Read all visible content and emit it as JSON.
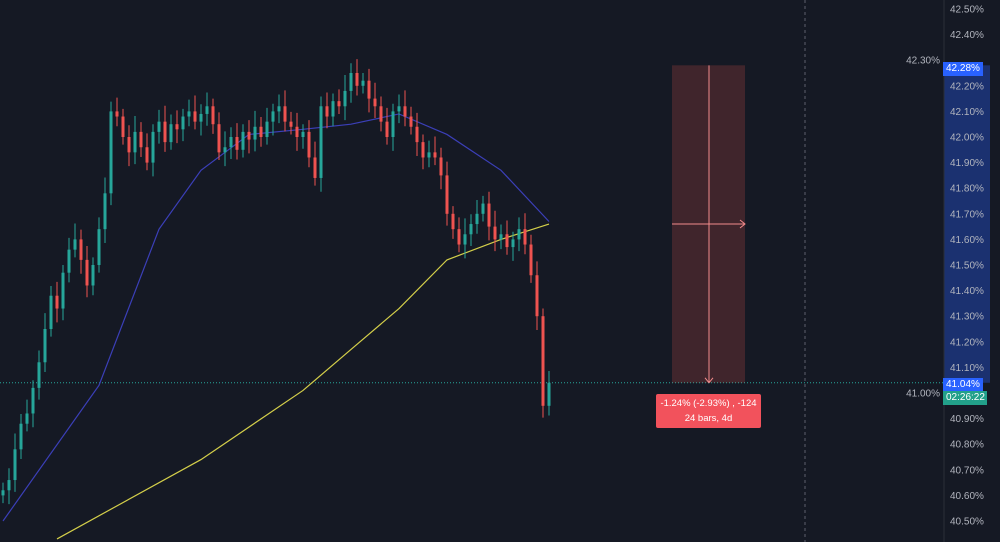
{
  "chart_data": {
    "type": "candlestick",
    "y_axis": {
      "min": 40.45,
      "max": 42.55,
      "ticks": [
        42.5,
        42.4,
        42.3,
        42.2,
        42.1,
        42.0,
        41.9,
        41.8,
        41.7,
        41.6,
        41.5,
        41.4,
        41.3,
        41.2,
        41.1,
        41.0,
        40.9,
        40.8,
        40.7,
        40.6,
        40.5
      ],
      "tick_suffix": "%",
      "position": "right"
    },
    "grid": false,
    "closes": [
      40.62,
      40.66,
      40.78,
      40.88,
      40.92,
      41.02,
      41.12,
      41.25,
      41.38,
      41.33,
      41.47,
      41.56,
      41.6,
      41.52,
      41.42,
      41.5,
      41.64,
      41.78,
      42.1,
      42.08,
      42.0,
      41.94,
      42.02,
      41.96,
      41.9,
      42.02,
      42.06,
      41.98,
      42.05,
      42.03,
      42.08,
      42.1,
      42.06,
      42.09,
      42.12,
      42.05,
      41.94,
      41.96,
      42.0,
      41.95,
      42.02,
      41.99,
      42.04,
      42.0,
      42.06,
      42.1,
      42.12,
      42.06,
      42.04,
      42.0,
      42.02,
      41.92,
      41.84,
      42.12,
      42.08,
      42.14,
      42.12,
      42.18,
      42.25,
      42.2,
      42.22,
      42.15,
      42.12,
      42.06,
      42.0,
      42.1,
      42.12,
      42.08,
      42.04,
      41.98,
      41.92,
      41.94,
      41.92,
      41.85,
      41.7,
      41.64,
      41.58,
      41.62,
      41.66,
      41.7,
      41.74,
      41.65,
      41.6,
      41.62,
      41.57,
      41.6,
      41.64,
      41.58,
      41.46,
      41.3,
      40.95,
      41.04
    ],
    "first_open": 40.6,
    "moving_averages": [
      {
        "color": "#3b3fb8",
        "points": [
          [
            0,
            40.5
          ],
          [
            16,
            41.03
          ],
          [
            26,
            41.64
          ],
          [
            33,
            41.87
          ],
          [
            41,
            42.01
          ],
          [
            50,
            42.03
          ],
          [
            58,
            42.05
          ],
          [
            66,
            42.09
          ],
          [
            74,
            42.01
          ],
          [
            83,
            41.87
          ],
          [
            91,
            41.67
          ]
        ]
      },
      {
        "color": "#d4cf4a",
        "points": [
          [
            9,
            40.43
          ],
          [
            33,
            40.74
          ],
          [
            50,
            41.01
          ],
          [
            58,
            41.17
          ],
          [
            66,
            41.33
          ],
          [
            74,
            41.52
          ],
          [
            83,
            41.6
          ],
          [
            91,
            41.66
          ]
        ]
      }
    ],
    "colors": {
      "up": "#26a69a",
      "down": "#ef5350",
      "background": "#151924"
    },
    "measure": {
      "from": 42.28,
      "to": 41.04,
      "line1": "-1.24% (-2.93%) , -124",
      "line2": "24 bars, 4d"
    },
    "price_tags": {
      "high": "42.28%",
      "last": "41.04%",
      "countdown": "02:26:22"
    }
  }
}
